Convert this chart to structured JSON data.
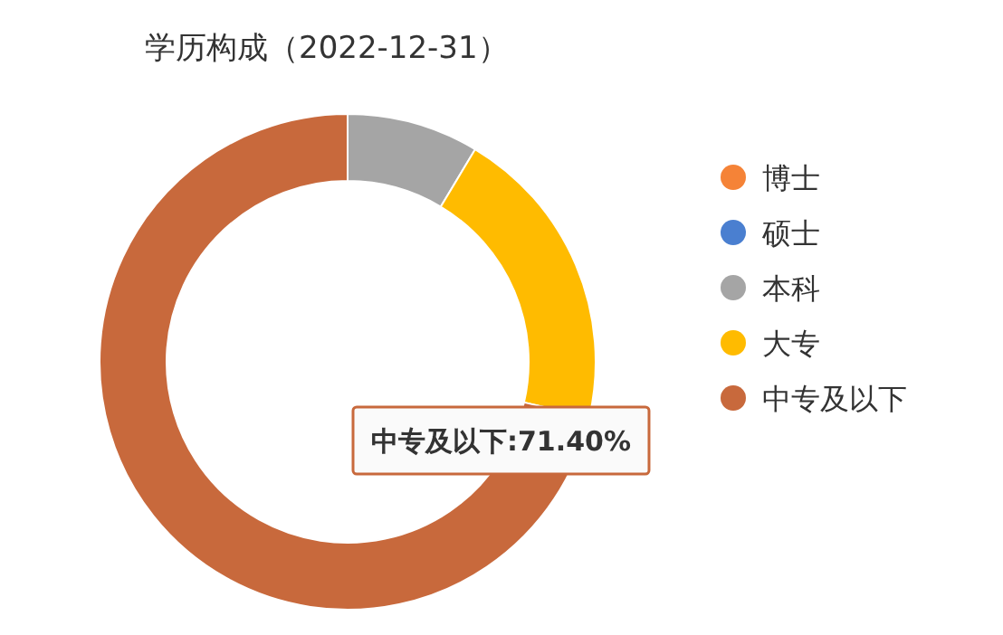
{
  "chart_data": {
    "type": "donut",
    "title": "学历构成（2022-12-31）",
    "categories": [
      "博士",
      "硕士",
      "本科",
      "大专",
      "中专及以下"
    ],
    "values": [
      0,
      0,
      8.6,
      20,
      71.4
    ],
    "colors": [
      "#f58337",
      "#4a7fd0",
      "#a5a5a5",
      "#ffbb00",
      "#c8693c"
    ],
    "value_labels": [
      null,
      null,
      null,
      null,
      "中专及以下:71.40%"
    ],
    "legend": "right"
  }
}
